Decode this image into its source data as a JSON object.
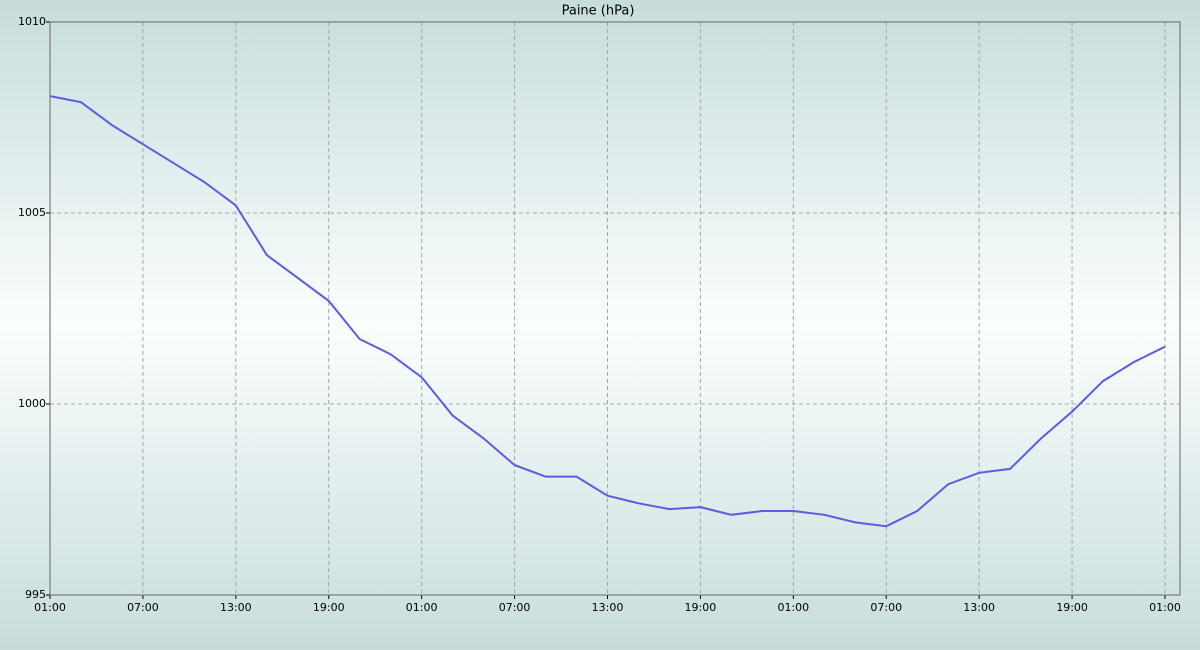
{
  "chart_data": {
    "type": "line",
    "title": "Paine (hPa)",
    "x": [
      0,
      2,
      4,
      6,
      8,
      10,
      12,
      14,
      16,
      18,
      20,
      22,
      24,
      26,
      28,
      30,
      32,
      34,
      36,
      38,
      40,
      42,
      44,
      46,
      48,
      50,
      52,
      54,
      56,
      58,
      60,
      62,
      64,
      66,
      68,
      70,
      72
    ],
    "series": [
      {
        "name": "Paine",
        "color": "#5c5ce0",
        "values": [
          1008.06,
          1007.9,
          1007.3,
          1006.8,
          1006.3,
          1005.8,
          1005.2,
          1003.9,
          1003.3,
          1002.7,
          1001.7,
          1001.3,
          1000.7,
          999.7,
          999.1,
          998.4,
          998.1,
          998.1,
          997.6,
          997.4,
          997.25,
          997.3,
          997.1,
          997.2,
          997.2,
          997.1,
          996.9,
          996.8,
          997.2,
          997.9,
          998.2,
          998.3,
          999.1,
          999.8,
          1000.6,
          1001.1,
          1001.5
        ]
      }
    ],
    "xlim": [
      0,
      72.97
    ],
    "xticks": [
      {
        "value": 0,
        "label": "01:00"
      },
      {
        "value": 6,
        "label": "07:00"
      },
      {
        "value": 12,
        "label": "13:00"
      },
      {
        "value": 18,
        "label": "19:00"
      },
      {
        "value": 24,
        "label": "01:00"
      },
      {
        "value": 30,
        "label": "07:00"
      },
      {
        "value": 36,
        "label": "13:00"
      },
      {
        "value": 42,
        "label": "19:00"
      },
      {
        "value": 48,
        "label": "01:00"
      },
      {
        "value": 54,
        "label": "07:00"
      },
      {
        "value": 60,
        "label": "13:00"
      },
      {
        "value": 66,
        "label": "19:00"
      },
      {
        "value": 72,
        "label": "01:00"
      }
    ],
    "ylim": [
      995,
      1010
    ],
    "yticks": [
      995,
      1000,
      1005,
      1010
    ],
    "grid": true
  }
}
